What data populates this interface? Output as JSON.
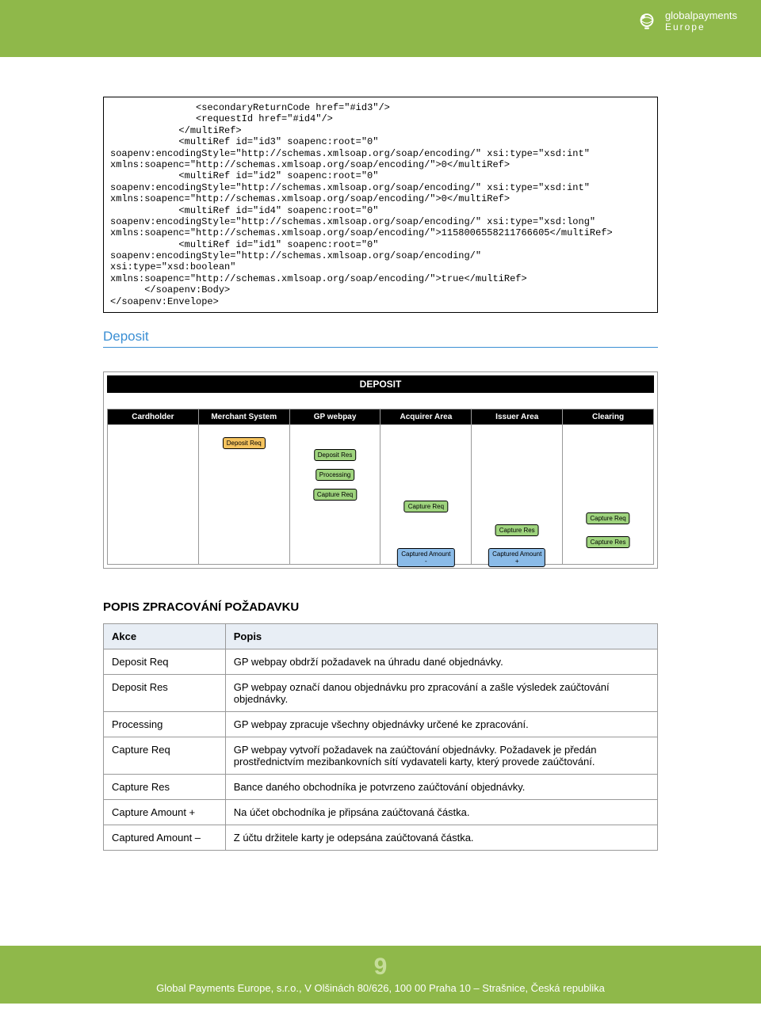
{
  "logo": {
    "brand": "globalpayments",
    "region": "Europe"
  },
  "code_block": "               <secondaryReturnCode href=\"#id3\"/>\n               <requestId href=\"#id4\"/>\n            </multiRef>\n            <multiRef id=\"id3\" soapenc:root=\"0\"\nsoapenv:encodingStyle=\"http://schemas.xmlsoap.org/soap/encoding/\" xsi:type=\"xsd:int\"\nxmlns:soapenc=\"http://schemas.xmlsoap.org/soap/encoding/\">0</multiRef>\n            <multiRef id=\"id2\" soapenc:root=\"0\"\nsoapenv:encodingStyle=\"http://schemas.xmlsoap.org/soap/encoding/\" xsi:type=\"xsd:int\"\nxmlns:soapenc=\"http://schemas.xmlsoap.org/soap/encoding/\">0</multiRef>\n            <multiRef id=\"id4\" soapenc:root=\"0\"\nsoapenv:encodingStyle=\"http://schemas.xmlsoap.org/soap/encoding/\" xsi:type=\"xsd:long\"\nxmlns:soapenc=\"http://schemas.xmlsoap.org/soap/encoding/\">1158006558211766605</multiRef>\n            <multiRef id=\"id1\" soapenc:root=\"0\"\nsoapenv:encodingStyle=\"http://schemas.xmlsoap.org/soap/encoding/\"\nxsi:type=\"xsd:boolean\"\nxmlns:soapenc=\"http://schemas.xmlsoap.org/soap/encoding/\">true</multiRef>\n      </soapenv:Body>\n</soapenv:Envelope>",
  "section_heading": "Deposit",
  "diagram": {
    "title": "DEPOSIT",
    "lanes": [
      "Cardholder",
      "Merchant System",
      "GP webpay",
      "Acquirer Area",
      "Issuer Area",
      "Clearing"
    ],
    "boxes": {
      "deposit_req": "Deposit Req",
      "deposit_res": "Deposit Res",
      "processing": "Processing",
      "capture_req_gp": "Capture Req",
      "capture_req_acq": "Capture Req",
      "capture_res_iss": "Capture Res",
      "capture_req_clr": "Capture Req",
      "capture_res_clr": "Capture Res",
      "captured_minus": "Captured Amount\n-",
      "captured_plus": "Captured Amount\n+"
    }
  },
  "table_heading": "POPIS ZPRACOVÁNÍ POŽADAVKU",
  "table": {
    "headers": [
      "Akce",
      "Popis"
    ],
    "rows": [
      [
        "Deposit Req",
        "GP webpay obdrží požadavek na úhradu dané objednávky."
      ],
      [
        "Deposit Res",
        "GP webpay označí danou objednávku pro zpracování a zašle výsledek zaúčtování objednávky."
      ],
      [
        "Processing",
        "GP webpay zpracuje všechny objednávky určené ke zpracování."
      ],
      [
        "Capture Req",
        "GP webpay vytvoří požadavek na zaúčtování objednávky. Požadavek je předán prostřednictvím mezibankovních sítí vydavateli karty, který provede zaúčtování."
      ],
      [
        "Capture Res",
        "Bance daného obchodníka je potvrzeno zaúčtování objednávky."
      ],
      [
        "Capture Amount +",
        "Na účet obchodníka je připsána zaúčtovaná částka."
      ],
      [
        "Captured Amount  –",
        "Z účtu držitele karty je odepsána zaúčtovaná částka."
      ]
    ]
  },
  "footer": {
    "page": "9",
    "text": "Global Payments Europe, s.r.o., V Olšinách 80/626, 100 00 Praha 10 – Strašnice, Česká republika"
  }
}
